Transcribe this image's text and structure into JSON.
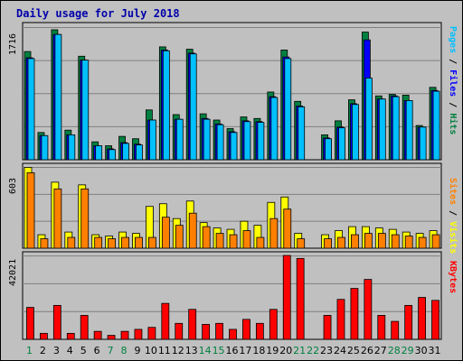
{
  "title": "Daily usage for July 2018",
  "colors": {
    "hits": "#008040",
    "files": "#0000ff",
    "pages": "#00c0ff",
    "visits": "#ffff00",
    "sites": "#ff8000",
    "kbytes": "#ff0000",
    "weekend": "#008040",
    "weekday": "#000000",
    "bg": "#c0c0c0"
  },
  "chart_data": [
    {
      "type": "bar",
      "title": "",
      "ymax_label": "1716",
      "ylim": [
        0,
        1716
      ],
      "legend": [
        "Pages",
        "Files",
        "Hits"
      ],
      "categories": [
        "1",
        "2",
        "3",
        "4",
        "5",
        "6",
        "7",
        "8",
        "9",
        "10",
        "11",
        "12",
        "13",
        "14",
        "15",
        "16",
        "17",
        "18",
        "19",
        "20",
        "21",
        "22",
        "23",
        "24",
        "25",
        "26",
        "27",
        "28",
        "29",
        "30",
        "31"
      ],
      "series": [
        {
          "name": "Hits",
          "values": [
            1390,
            350,
            1670,
            380,
            1330,
            230,
            180,
            300,
            270,
            640,
            1450,
            580,
            1420,
            590,
            510,
            400,
            550,
            530,
            870,
            1410,
            750,
            0,
            320,
            500,
            770,
            1640,
            820,
            840,
            830,
            440,
            930
          ]
        },
        {
          "name": "Files",
          "values": [
            1310,
            310,
            1610,
            320,
            1280,
            180,
            140,
            220,
            200,
            510,
            1410,
            520,
            1370,
            530,
            460,
            360,
            500,
            490,
            810,
            1320,
            690,
            0,
            280,
            420,
            720,
            1540,
            780,
            820,
            760,
            420,
            890
          ]
        },
        {
          "name": "Pages",
          "values": [
            1300,
            310,
            1610,
            320,
            1280,
            180,
            130,
            210,
            190,
            510,
            1400,
            520,
            1360,
            520,
            450,
            350,
            490,
            480,
            800,
            1300,
            680,
            0,
            270,
            410,
            710,
            1050,
            780,
            810,
            760,
            420,
            880
          ]
        }
      ]
    },
    {
      "type": "bar",
      "title": "",
      "ymax_label": "603",
      "ylim": [
        0,
        603
      ],
      "legend": [
        "Sites",
        "Visits"
      ],
      "categories": [
        "1",
        "2",
        "3",
        "4",
        "5",
        "6",
        "7",
        "8",
        "9",
        "10",
        "11",
        "12",
        "13",
        "14",
        "15",
        "16",
        "17",
        "18",
        "19",
        "20",
        "21",
        "22",
        "23",
        "24",
        "25",
        "26",
        "27",
        "28",
        "29",
        "30",
        "31"
      ],
      "series": [
        {
          "name": "Visits",
          "values": [
            600,
            100,
            490,
            120,
            470,
            100,
            90,
            120,
            110,
            310,
            330,
            220,
            350,
            190,
            150,
            140,
            200,
            170,
            340,
            380,
            110,
            0,
            100,
            130,
            160,
            160,
            150,
            140,
            120,
            110,
            130
          ]
        },
        {
          "name": "Sites",
          "values": [
            560,
            70,
            440,
            80,
            440,
            80,
            70,
            80,
            80,
            80,
            230,
            170,
            260,
            160,
            110,
            100,
            130,
            80,
            220,
            290,
            70,
            0,
            70,
            80,
            100,
            110,
            110,
            100,
            90,
            80,
            100
          ]
        }
      ]
    },
    {
      "type": "bar",
      "title": "",
      "ymax_label": "42021",
      "ylim": [
        0,
        42021
      ],
      "legend": [
        "KBytes"
      ],
      "categories": [
        "1",
        "2",
        "3",
        "4",
        "5",
        "6",
        "7",
        "8",
        "9",
        "10",
        "11",
        "12",
        "13",
        "14",
        "15",
        "16",
        "17",
        "18",
        "19",
        "20",
        "21",
        "22",
        "23",
        "24",
        "25",
        "26",
        "27",
        "28",
        "29",
        "30",
        "31"
      ],
      "series": [
        {
          "name": "KBytes",
          "values": [
            16000,
            3000,
            17000,
            3000,
            12000,
            4000,
            2000,
            4000,
            5000,
            6000,
            18000,
            8000,
            15000,
            7500,
            8000,
            5000,
            10000,
            8000,
            15000,
            42000,
            40500,
            0,
            12000,
            20000,
            25500,
            30000,
            12000,
            9000,
            17000,
            21000,
            19500
          ]
        }
      ]
    }
  ]
}
